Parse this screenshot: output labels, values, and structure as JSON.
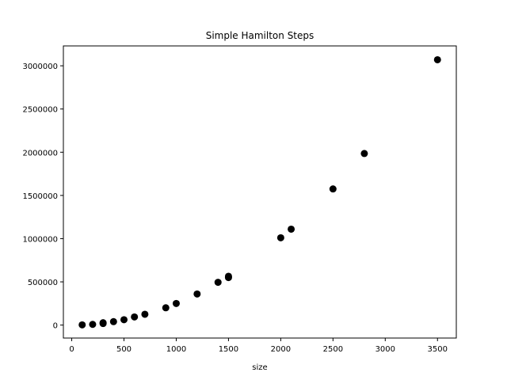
{
  "chart_data": {
    "type": "scatter",
    "title": "Simple Hamilton Steps",
    "xlabel": "size",
    "ylabel": "",
    "xlim": [
      -80,
      3680
    ],
    "ylim": [
      -150000,
      3230000
    ],
    "x_ticks": [
      0,
      500,
      1000,
      1500,
      2000,
      2500,
      3000,
      3500
    ],
    "x_tick_labels": [
      "0",
      "500",
      "1000",
      "1500",
      "2000",
      "2500",
      "3000",
      "3500"
    ],
    "y_ticks": [
      0,
      500000,
      1000000,
      1500000,
      2000000,
      2500000,
      3000000
    ],
    "y_tick_labels": [
      "0",
      "500000",
      "1000000",
      "1500000",
      "2000000",
      "2500000",
      "3000000"
    ],
    "grid": false,
    "marker_color": "#000000",
    "points": [
      {
        "x": 100,
        "y": 2500
      },
      {
        "x": 200,
        "y": 8000
      },
      {
        "x": 300,
        "y": 18000
      },
      {
        "x": 300,
        "y": 27000
      },
      {
        "x": 400,
        "y": 40000
      },
      {
        "x": 500,
        "y": 62000
      },
      {
        "x": 600,
        "y": 94000
      },
      {
        "x": 700,
        "y": 125000
      },
      {
        "x": 900,
        "y": 200000
      },
      {
        "x": 1000,
        "y": 250000
      },
      {
        "x": 1200,
        "y": 360000
      },
      {
        "x": 1400,
        "y": 495000
      },
      {
        "x": 1500,
        "y": 550000
      },
      {
        "x": 1500,
        "y": 565000
      },
      {
        "x": 2000,
        "y": 1010000
      },
      {
        "x": 2100,
        "y": 1110000
      },
      {
        "x": 2500,
        "y": 1575000
      },
      {
        "x": 2800,
        "y": 1985000
      },
      {
        "x": 3500,
        "y": 3070000
      }
    ]
  }
}
